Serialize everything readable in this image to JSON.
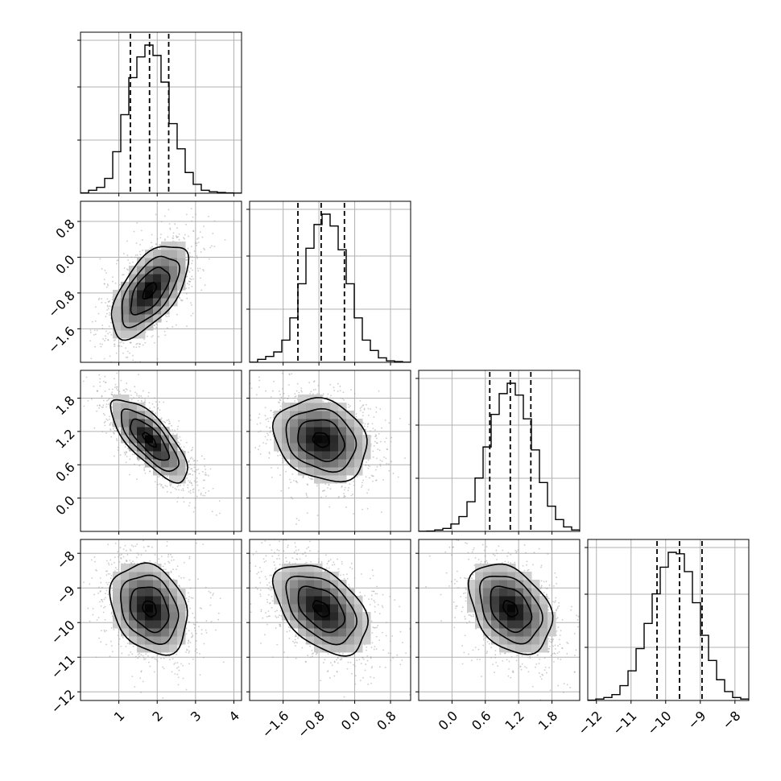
{
  "chart_data": {
    "type": "corner",
    "grid": true,
    "parameters": [
      {
        "mean": 1.8,
        "sd": 0.5,
        "ticks": [
          1,
          2,
          3,
          4
        ],
        "tick_labels": [
          "1",
          "2",
          "3",
          "4"
        ],
        "range": [
          0.0,
          4.2
        ],
        "quantiles": [
          1.3,
          1.8,
          2.3
        ]
      },
      {
        "mean": -0.75,
        "sd": 0.52,
        "ticks": [
          -1.6,
          -0.8,
          0.0,
          0.8
        ],
        "tick_labels": [
          "−1.6",
          "−0.8",
          "0.0",
          "0.8"
        ],
        "range": [
          -2.35,
          1.25
        ],
        "quantiles": [
          -1.27,
          -0.75,
          -0.23
        ]
      },
      {
        "mean": 1.05,
        "sd": 0.37,
        "ticks": [
          0.0,
          0.6,
          1.2,
          1.8
        ],
        "tick_labels": [
          "0.0",
          "0.6",
          "1.2",
          "1.8"
        ],
        "range": [
          -0.6,
          2.3
        ],
        "quantiles": [
          0.68,
          1.05,
          1.42
        ]
      },
      {
        "mean": -9.6,
        "sd": 0.65,
        "ticks": [
          -12,
          -11,
          -10,
          -9,
          -8
        ],
        "tick_labels": [
          "−12",
          "−11",
          "−10",
          "−9",
          "−8"
        ],
        "range": [
          -12.25,
          -7.6
        ],
        "quantiles": [
          -10.25,
          -9.6,
          -8.95
        ]
      }
    ],
    "correlations": [
      [
        1.0,
        0.6,
        -0.75,
        -0.25
      ],
      [
        0.6,
        1.0,
        -0.2,
        -0.45
      ],
      [
        -0.75,
        -0.2,
        1.0,
        -0.35
      ],
      [
        -0.25,
        -0.45,
        -0.35,
        1.0
      ]
    ],
    "histograms": [
      [
        0.002,
        0.02,
        0.04,
        0.1,
        0.28,
        0.53,
        0.78,
        0.92,
        1.0,
        0.93,
        0.75,
        0.47,
        0.3,
        0.14,
        0.06,
        0.02,
        0.01,
        0.005,
        0.002,
        0.001
      ],
      [
        0.001,
        0.02,
        0.04,
        0.07,
        0.15,
        0.3,
        0.53,
        0.77,
        0.93,
        1.0,
        0.92,
        0.76,
        0.53,
        0.3,
        0.15,
        0.08,
        0.03,
        0.01,
        0.005,
        0.001
      ],
      [
        0.001,
        0.002,
        0.01,
        0.02,
        0.05,
        0.1,
        0.2,
        0.36,
        0.57,
        0.79,
        0.93,
        1.0,
        0.92,
        0.76,
        0.55,
        0.33,
        0.17,
        0.08,
        0.03,
        0.01
      ],
      [
        0.002,
        0.01,
        0.02,
        0.04,
        0.1,
        0.2,
        0.35,
        0.52,
        0.72,
        0.9,
        1.0,
        0.99,
        0.87,
        0.66,
        0.44,
        0.27,
        0.14,
        0.06,
        0.02,
        0.01
      ]
    ]
  }
}
